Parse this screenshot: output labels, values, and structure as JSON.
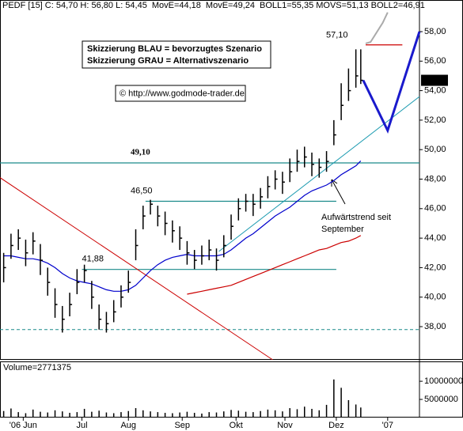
{
  "chart_data": {
    "type": "hlc",
    "header": [
      {
        "text": "PEDF [15] C: 54,70 H: 56,80 L: 54,45",
        "color": "#000000"
      },
      {
        "text": "MovE=44,18",
        "color": "#cc0000"
      },
      {
        "text": "MovE=49,24",
        "color": "#0000cc"
      },
      {
        "text": "BOLL1=55,35 MOVS=51,13 BOLL2=46,91",
        "color": "#999999"
      }
    ],
    "annotations": [
      "Skizzierung BLAU = bevorzugtes Szenario",
      "Skizzierung GRAU = Alternativszenario",
      "© http://www.godmode-trader.de",
      "Aufwärtstrend seit",
      "September"
    ],
    "xlim": [
      -1.5,
      170
    ],
    "xticks": [
      {
        "value": 8,
        "label": "'06 Jun"
      },
      {
        "value": 32,
        "label": "Jul"
      },
      {
        "value": 51,
        "label": "Aug"
      },
      {
        "value": 73,
        "label": "Sep"
      },
      {
        "value": 95,
        "label": "Okt"
      },
      {
        "value": 115,
        "label": "Nov"
      },
      {
        "value": 136,
        "label": "Dez"
      },
      {
        "value": 157,
        "label": "'07"
      }
    ],
    "ylim": [
      35.75,
      59.34
    ],
    "yticks": [
      {
        "value": 38,
        "label": "38,00"
      },
      {
        "value": 40,
        "label": "40,00"
      },
      {
        "value": 42,
        "label": "42,00"
      },
      {
        "value": 44,
        "label": "44,00"
      },
      {
        "value": 46,
        "label": "46,00"
      },
      {
        "value": 48,
        "label": "48,00"
      },
      {
        "value": 50,
        "label": "50,00"
      },
      {
        "value": 52,
        "label": "52,00"
      },
      {
        "value": 54,
        "label": "54,00"
      },
      {
        "value": 56,
        "label": "56,00"
      },
      {
        "value": 58,
        "label": "58,00"
      }
    ],
    "x": [
      0,
      3,
      6,
      9,
      12,
      15,
      18,
      21,
      24,
      27,
      30,
      33,
      36,
      39,
      42,
      45,
      48,
      51,
      54,
      57,
      60,
      63,
      66,
      69,
      72,
      75,
      78,
      81,
      84,
      87,
      90,
      93,
      96,
      99,
      102,
      105,
      108,
      111,
      114,
      117,
      120,
      123,
      126,
      129,
      132,
      135,
      138,
      141,
      144,
      146
    ],
    "high": [
      43.0,
      44.3,
      44.6,
      43.9,
      44.4,
      43.6,
      42.0,
      40.6,
      39.4,
      40.3,
      41.9,
      42.2,
      41.1,
      39.5,
      39.0,
      39.8,
      40.8,
      41.8,
      44.6,
      46.2,
      46.6,
      46.2,
      45.8,
      45.2,
      44.8,
      43.8,
      43.2,
      43.5,
      43.9,
      43.3,
      44.2,
      45.6,
      46.7,
      47.0,
      47.0,
      47.4,
      48.2,
      48.6,
      48.5,
      49.4,
      50.0,
      50.2,
      49.8,
      49.4,
      49.9,
      52.0,
      54.5,
      55.5,
      56.8,
      56.8
    ],
    "low": [
      41.0,
      42.6,
      43.2,
      42.1,
      42.9,
      41.5,
      40.1,
      38.6,
      37.6,
      38.7,
      40.2,
      41.0,
      39.2,
      37.8,
      37.6,
      38.3,
      39.3,
      40.3,
      42.5,
      44.6,
      45.6,
      44.8,
      44.2,
      43.7,
      43.2,
      42.2,
      41.9,
      42.2,
      42.5,
      41.8,
      42.7,
      43.9,
      45.2,
      45.8,
      45.5,
      46.0,
      46.7,
      47.3,
      47.0,
      47.8,
      48.5,
      48.8,
      48.2,
      48.1,
      48.5,
      50.3,
      52.0,
      53.3,
      54.2,
      54.45
    ],
    "close": [
      42.0,
      43.5,
      44.0,
      43.0,
      43.8,
      42.5,
      41.0,
      39.5,
      38.5,
      39.5,
      41.0,
      41.8,
      40.0,
      38.5,
      38.2,
      39.0,
      40.0,
      41.0,
      43.5,
      45.5,
      46.3,
      45.5,
      45.0,
      44.5,
      44.0,
      43.0,
      42.5,
      42.8,
      43.2,
      42.5,
      43.5,
      44.8,
      46.0,
      46.5,
      46.3,
      46.8,
      47.5,
      48.0,
      47.8,
      48.5,
      49.2,
      49.5,
      49.0,
      48.8,
      49.2,
      51.0,
      53.0,
      54.0,
      55.0,
      54.7
    ],
    "bar_color": "#000000",
    "series": [
      {
        "name": "MovE=49,24",
        "color": "#0000cc",
        "values": [
          42.8,
          42.8,
          42.7,
          42.6,
          42.6,
          42.5,
          42.3,
          42.0,
          41.6,
          41.3,
          41.1,
          41.0,
          40.9,
          40.7,
          40.5,
          40.4,
          40.4,
          40.5,
          40.8,
          41.3,
          41.8,
          42.2,
          42.5,
          42.7,
          42.8,
          42.9,
          42.8,
          42.8,
          42.8,
          42.8,
          42.9,
          43.2,
          43.6,
          44.0,
          44.3,
          44.7,
          45.1,
          45.5,
          45.8,
          46.1,
          46.5,
          46.9,
          47.2,
          47.4,
          47.6,
          47.9,
          48.3,
          48.6,
          48.9,
          49.24
        ]
      },
      {
        "name": "MovE=44,18",
        "color": "#cc0000",
        "values": [
          null,
          null,
          null,
          null,
          null,
          null,
          null,
          null,
          null,
          null,
          null,
          null,
          null,
          null,
          null,
          null,
          null,
          null,
          null,
          null,
          null,
          null,
          null,
          null,
          null,
          40.2,
          40.3,
          40.4,
          40.5,
          40.6,
          40.7,
          40.8,
          41.0,
          41.2,
          41.4,
          41.6,
          41.8,
          42.0,
          42.2,
          42.4,
          42.6,
          42.8,
          43.0,
          43.2,
          43.3,
          43.5,
          43.7,
          43.8,
          44.0,
          44.18
        ]
      }
    ],
    "levels": [
      {
        "value": 49.1,
        "label": "49,10",
        "x": [
          -1.5,
          170
        ],
        "color": "#1a8a8a"
      },
      {
        "value": 46.5,
        "label": "46,50",
        "x": [
          58,
          136
        ],
        "color": "#1a8a8a"
      },
      {
        "value": 41.88,
        "label": "41,88",
        "x": [
          32,
          136
        ],
        "color": "#1a8a8a"
      },
      {
        "value": 37.8,
        "x": [
          -1.5,
          170
        ],
        "color": "#1a8a8a",
        "dashed": true
      },
      {
        "value": 57.1,
        "label": "57,10",
        "x": [
          148,
          163
        ],
        "color": "#cc0000"
      }
    ],
    "trendlines": [
      {
        "color": "#cc0000",
        "x": [
          -1.5,
          110
        ],
        "y": [
          48.1,
          35.75
        ]
      },
      {
        "color": "#1a9ab0",
        "x": [
          88,
          170
        ],
        "y": [
          43.1,
          53.6
        ]
      }
    ],
    "scenarios": [
      {
        "color": "#1a1acc",
        "x": [
          147,
          157,
          170
        ],
        "y": [
          54.7,
          51.3,
          58.0
        ]
      },
      {
        "color": "#aaaaaa",
        "x": [
          148,
          150,
          155,
          157
        ],
        "y": [
          57.2,
          57.3,
          58.6,
          59.3
        ]
      }
    ],
    "last_price": {
      "value": 54.7,
      "label": "54,70"
    },
    "volume": {
      "label": "Volume=2771375",
      "ylim": [
        0,
        12200000
      ],
      "yticks": [
        5000000,
        10000000
      ],
      "values": [
        1800000,
        2500000,
        1500000,
        1200000,
        2200000,
        1600000,
        1400000,
        2000000,
        1700000,
        1300000,
        1500000,
        2400000,
        1600000,
        1900000,
        1400000,
        1200000,
        1500000,
        1800000,
        2600000,
        2000000,
        1700000,
        1500000,
        1300000,
        1200000,
        1400000,
        1600000,
        1300000,
        1100000,
        1500000,
        1400000,
        1700000,
        2100000,
        1900000,
        1600000,
        1500000,
        1800000,
        2200000,
        2000000,
        1700000,
        2600000,
        2300000,
        3000000,
        2400000,
        2000000,
        3500000,
        10500000,
        8200000,
        4800000,
        3600000,
        2771375
      ]
    }
  }
}
